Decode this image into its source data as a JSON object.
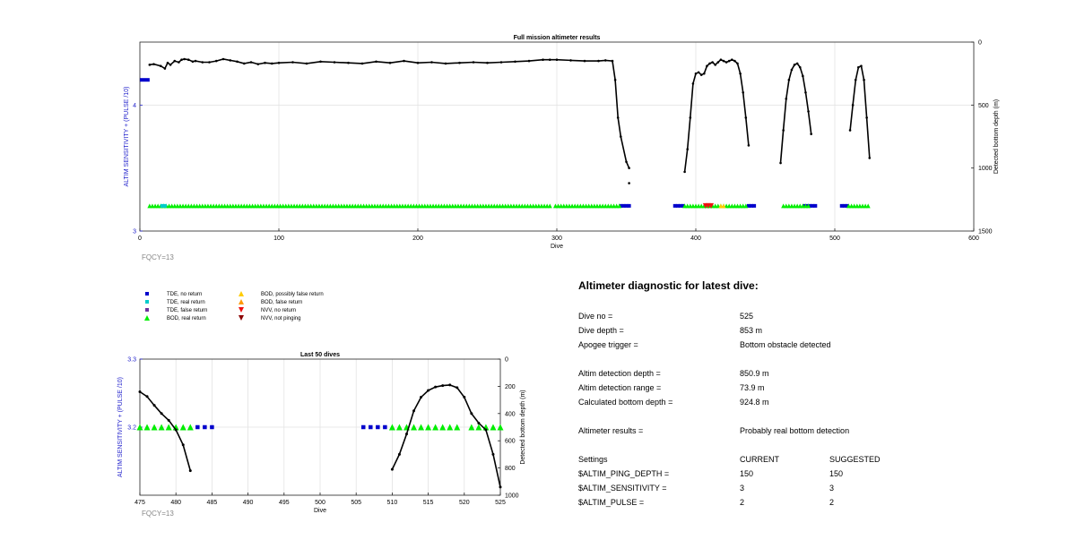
{
  "colors": {
    "tde": "#0000cc",
    "accent_blue": "#2222cc",
    "bod_green": "#00ee00",
    "cyan": "#00cccc",
    "purple": "#7030a0",
    "yellow": "#ffcc00",
    "orange": "#ff9900",
    "red": "#ee1111",
    "darkred": "#8b0000",
    "fqcy": "#888888"
  },
  "legend": [
    {
      "label": "TDE, no return",
      "marker": "square",
      "color": "#0000cc"
    },
    {
      "label": "TDE, real return",
      "marker": "square",
      "color": "#00cccc"
    },
    {
      "label": "TDE, false return",
      "marker": "square",
      "color": "#7030a0"
    },
    {
      "label": "BOD, real return",
      "marker": "triangle-up",
      "color": "#00ee00"
    },
    {
      "label": "BOD, possibly false return",
      "marker": "triangle-up",
      "color": "#ffcc00"
    },
    {
      "label": "BOD, false return",
      "marker": "triangle-up",
      "color": "#ff9900"
    },
    {
      "label": "NVV, no return",
      "marker": "triangle-down",
      "color": "#ee1111"
    },
    {
      "label": "NVV, not pinging",
      "marker": "triangle-down",
      "color": "#8b0000"
    }
  ],
  "chart_data": [
    {
      "type": "line",
      "title": "Full mission altimeter results",
      "xlabel": "Dive",
      "ylabel_left": "ALTIM SENSITIVITY + (PULSE /10)",
      "ylabel_right": "Detected bottom depth (m)",
      "xlim": [
        0,
        600
      ],
      "xticks": [
        0,
        100,
        200,
        300,
        400,
        500,
        600
      ],
      "ylim_left": [
        3,
        4.5
      ],
      "yticks_left": [
        3,
        4
      ],
      "ylim_right": [
        1500,
        0
      ],
      "yticks_right": [
        0,
        500,
        1000,
        1500
      ],
      "grid": true,
      "annotation": "FQCY=13",
      "settings_series": {
        "x_start": 0,
        "x_end": 7,
        "y": 4.2
      },
      "markers": {
        "y": 3.2,
        "bod_real_ranges": [
          [
            7,
            295
          ],
          [
            299,
            345
          ],
          [
            392,
            437
          ],
          [
            463,
            482
          ],
          [
            510,
            525
          ]
        ],
        "tde_no_return_ranges": [
          [
            346,
            352
          ],
          [
            385,
            392
          ],
          [
            438,
            442
          ],
          [
            478,
            486
          ],
          [
            505,
            510
          ]
        ],
        "tde_real_return_ranges": [
          [
            16,
            19
          ]
        ],
        "nvv_no_return_ranges": [
          [
            407,
            411
          ]
        ],
        "bod_possibly_false_ranges": [
          [
            418,
            420
          ]
        ]
      },
      "depth_series": [
        {
          "x": [
            7,
            10,
            15,
            18,
            20,
            22,
            25,
            28,
            30,
            32,
            35,
            38,
            40,
            45,
            50,
            55,
            60,
            65,
            70,
            75,
            80,
            85,
            90,
            95,
            100,
            110,
            120,
            130,
            140,
            150,
            160,
            170,
            180,
            190,
            200,
            210,
            220,
            230,
            240,
            250,
            260,
            270,
            280,
            290,
            295,
            300,
            310,
            320,
            330,
            335,
            340,
            342,
            344,
            346,
            350,
            352
          ],
          "y": [
            180,
            175,
            190,
            210,
            165,
            180,
            150,
            160,
            140,
            135,
            140,
            155,
            150,
            160,
            160,
            150,
            135,
            145,
            155,
            170,
            160,
            175,
            165,
            170,
            165,
            160,
            170,
            155,
            160,
            165,
            170,
            155,
            165,
            150,
            165,
            160,
            170,
            165,
            160,
            165,
            160,
            155,
            150,
            140,
            140,
            140,
            145,
            150,
            150,
            145,
            150,
            300,
            600,
            750,
            950,
            1000
          ]
        },
        {
          "x": [
            352
          ],
          "y": [
            1120
          ]
        },
        {
          "x": [
            392,
            394,
            396,
            398,
            400,
            402,
            404,
            406,
            408,
            410,
            412,
            414,
            416,
            418,
            420,
            422,
            424,
            426,
            428,
            430,
            432,
            434,
            436,
            438
          ],
          "y": [
            1030,
            850,
            600,
            330,
            250,
            240,
            260,
            250,
            190,
            170,
            160,
            180,
            160,
            140,
            150,
            160,
            150,
            140,
            150,
            170,
            250,
            400,
            600,
            820
          ]
        },
        {
          "x": [
            461,
            463,
            465,
            467,
            469,
            471,
            473,
            475,
            477,
            479,
            481,
            483
          ],
          "y": [
            960,
            700,
            450,
            300,
            220,
            180,
            170,
            200,
            270,
            400,
            550,
            730
          ]
        },
        {
          "x": [
            511,
            513,
            515,
            517,
            519,
            521,
            523,
            525
          ],
          "y": [
            700,
            500,
            300,
            200,
            190,
            300,
            600,
            920
          ]
        }
      ]
    },
    {
      "type": "line",
      "title": "Last 50 dives",
      "xlabel": "Dive",
      "ylabel_left": "ALTIM SENSITIVITY + (PULSE /10)",
      "ylabel_right": "Detected bottom depth (m)",
      "xlim": [
        475,
        525
      ],
      "xticks": [
        475,
        480,
        485,
        490,
        495,
        500,
        505,
        510,
        515,
        520,
        525
      ],
      "ylim_left": [
        3.1,
        3.3
      ],
      "yticks_left": [
        3.2,
        3.3
      ],
      "ylim_right": [
        1000,
        0
      ],
      "yticks_right": [
        0,
        200,
        400,
        600,
        800,
        1000
      ],
      "grid": true,
      "annotation": "FQCY=13",
      "markers": {
        "y": 3.2,
        "bod_real_x": [
          475,
          476,
          477,
          478,
          479,
          480,
          481,
          482,
          510,
          511,
          512,
          513,
          514,
          515,
          516,
          517,
          518,
          519,
          521,
          522,
          523,
          524,
          525
        ],
        "tde_no_return_x": [
          483,
          484,
          485,
          506,
          507,
          508,
          509
        ]
      },
      "depth_series": [
        {
          "x": [
            475,
            476,
            477,
            478,
            479,
            480,
            481,
            482
          ],
          "y": [
            240,
            275,
            340,
            400,
            450,
            520,
            630,
            820
          ]
        },
        {
          "x": [
            510,
            511,
            512,
            513,
            514,
            515,
            516,
            517,
            518,
            519,
            520,
            521,
            522,
            523,
            524,
            525
          ],
          "y": [
            810,
            700,
            550,
            380,
            280,
            230,
            205,
            195,
            190,
            210,
            280,
            400,
            470,
            520,
            700,
            940
          ]
        }
      ]
    }
  ],
  "diagnostic": {
    "heading": "Altimeter diagnostic for latest dive:",
    "dive_no_label": "Dive no =",
    "dive_no": "525",
    "dive_depth_label": "Dive depth =",
    "dive_depth": "853 m",
    "apogee_label": "Apogee trigger =",
    "apogee": "Bottom obstacle detected",
    "det_depth_label": "Altim detection depth =",
    "det_depth": "850.9 m",
    "det_range_label": "Altim detection range =",
    "det_range": "73.9 m",
    "calc_label": "Calculated bottom depth =",
    "calc": "924.8 m",
    "results_label": "Altimeter results =",
    "results": "Probably real bottom detection",
    "settings_label": "Settings",
    "current_label": "CURRENT",
    "suggested_label": "SUGGESTED",
    "settings": [
      {
        "name": "$ALTIM_PING_DEPTH =",
        "current": "150",
        "suggested": "150"
      },
      {
        "name": "$ALTIM_SENSITIVITY =",
        "current": "3",
        "suggested": "3"
      },
      {
        "name": "$ALTIM_PULSE =",
        "current": "2",
        "suggested": "2"
      }
    ]
  }
}
